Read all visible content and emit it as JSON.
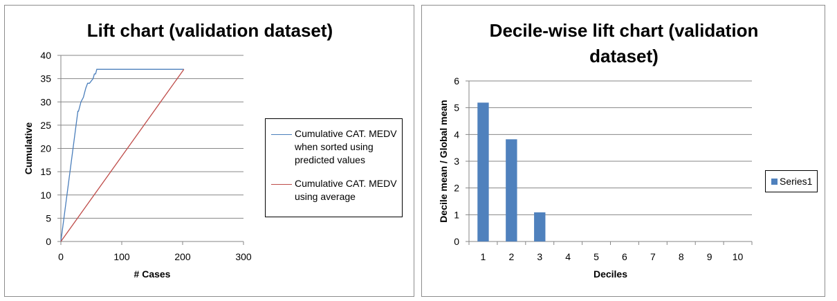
{
  "chart_data": [
    {
      "type": "line",
      "title": "Lift chart (validation dataset)",
      "xlabel": "# Cases",
      "ylabel": "Cumulative",
      "xlim": [
        0,
        300
      ],
      "ylim": [
        0,
        40
      ],
      "xticks": [
        "0",
        "100",
        "200",
        "300"
      ],
      "yticks": [
        "0",
        "5",
        "10",
        "15",
        "20",
        "25",
        "30",
        "35",
        "40"
      ],
      "grid": "horizontal",
      "legend_position": "right",
      "series": [
        {
          "name": "Cumulative CAT. MEDV when sorted using predicted values",
          "color": "#4a7ebb",
          "x": [
            0,
            28,
            29,
            31,
            33,
            37,
            39,
            41,
            44,
            47,
            53,
            55,
            57,
            59,
            202
          ],
          "y": [
            0,
            28,
            28,
            29,
            30,
            31,
            32,
            33,
            34,
            34,
            35,
            36,
            36,
            37,
            37
          ]
        },
        {
          "name": "Cumulative CAT. MEDV using average",
          "color": "#be4b48",
          "x": [
            0,
            202
          ],
          "y": [
            0,
            37
          ]
        }
      ]
    },
    {
      "type": "bar",
      "title": "Decile-wise lift chart (validation dataset)",
      "xlabel": "Deciles",
      "ylabel": "Decile mean / Global mean",
      "categories": [
        "1",
        "2",
        "3",
        "4",
        "5",
        "6",
        "7",
        "8",
        "9",
        "10"
      ],
      "ylim": [
        0,
        6
      ],
      "yticks": [
        "0",
        "1",
        "2",
        "3",
        "4",
        "5",
        "6"
      ],
      "grid": "horizontal",
      "legend_position": "right",
      "series": [
        {
          "name": "Series1",
          "color": "#4f81bd",
          "values": [
            5.19,
            3.82,
            1.09,
            0,
            0,
            0,
            0,
            0,
            0,
            0
          ]
        }
      ]
    }
  ]
}
